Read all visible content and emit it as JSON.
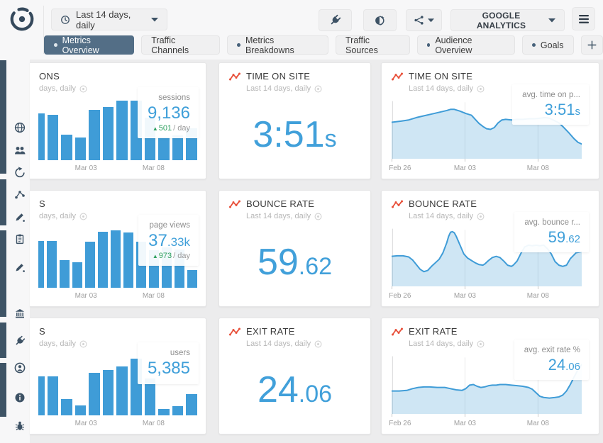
{
  "colors": {
    "accent_blue": "#3f9cd7",
    "area_fill": "rgba(62,154,213,0.25)",
    "green": "#2ea05f",
    "red": "#e8503a",
    "slate": "#3d5265",
    "active_tab": "#536e86"
  },
  "icons": {
    "up_arrow": "▲"
  },
  "topbar": {
    "date_range_label": "Last 14 days, daily",
    "provider_label": "GOOGLE ANALYTICS"
  },
  "tabs": [
    {
      "label": "Metrics Overview",
      "active": true,
      "dot": true
    },
    {
      "label": "Traffic Channels",
      "active": false,
      "dot": false
    },
    {
      "label": "Metrics Breakdowns",
      "active": false,
      "dot": true
    },
    {
      "label": "Traffic Sources",
      "active": false,
      "dot": false
    },
    {
      "label": "Audience Overview",
      "active": false,
      "dot": true
    },
    {
      "label": "Goals",
      "active": false,
      "dot": true
    }
  ],
  "sidebar": {
    "icons": [
      "globe",
      "people",
      "globe-arrow",
      "scatter-dots",
      "pen",
      "clipboard",
      "pen",
      "bank",
      "plug",
      "person-circle",
      "info",
      "bug"
    ]
  },
  "widgets": [
    {
      "title": "ONS",
      "subtitle": "days, daily",
      "stat": {
        "label": "sessions",
        "value_main": "9,136",
        "value_suffix": "",
        "delta": "501",
        "delta_unit": "/ day"
      },
      "chart": 0
    },
    {
      "title": "TIME ON SITE",
      "subtitle": "Last 14 days, daily",
      "value_main": "3:51",
      "value_suffix": "s"
    },
    {
      "title": "TIME ON SITE",
      "subtitle": "Last 14 days, daily",
      "stat": {
        "label": "avg. time on p...",
        "value_main": "3:51",
        "value_suffix": "s"
      },
      "chart": 1
    },
    {
      "title": "S",
      "subtitle": "days, daily",
      "stat": {
        "label": "page views",
        "value_main": "37",
        "value_suffix": ".33k",
        "delta": "973",
        "delta_unit": "/ day"
      },
      "chart": 2
    },
    {
      "title": "BOUNCE RATE",
      "subtitle": "Last 14 days, daily",
      "value_main": "59",
      "value_suffix": ".62"
    },
    {
      "title": "BOUNCE RATE",
      "subtitle": "Last 14 days, daily",
      "stat": {
        "label": "avg. bounce r...",
        "value_main": "59",
        "value_suffix": ".62"
      },
      "chart": 3
    },
    {
      "title": "S",
      "subtitle": "days, daily",
      "stat": {
        "label": "users",
        "value_main": "5,385",
        "value_suffix": ""
      },
      "chart": 4
    },
    {
      "title": "EXIT RATE",
      "subtitle": "Last 14 days, daily",
      "value_main": "24",
      "value_suffix": ".06"
    },
    {
      "title": "EXIT RATE",
      "subtitle": "Last 14 days, daily",
      "stat": {
        "label": "avg. exit rate %",
        "value_main": "24",
        "value_suffix": ".06"
      },
      "chart": 5
    }
  ],
  "chart_data": [
    {
      "type": "bar",
      "id": "sessions",
      "total": "9,136",
      "delta_per_day": "501",
      "first_bar_clipped": true,
      "values_relative_pct": [
        72,
        70,
        40,
        35,
        78,
        82,
        92,
        92,
        66,
        36,
        38,
        49
      ],
      "x_ticks": [
        "Mar 03",
        "Mar 08"
      ],
      "x_tick_pos_pct": [
        30,
        72.5
      ]
    },
    {
      "type": "area",
      "id": "time-on-site",
      "value": "3:51s",
      "points": [
        [
          0,
          38
        ],
        [
          5,
          36
        ],
        [
          9,
          34
        ],
        [
          13,
          30
        ],
        [
          17,
          27
        ],
        [
          21,
          24
        ],
        [
          25,
          21
        ],
        [
          29,
          18
        ],
        [
          31,
          16
        ],
        [
          33,
          16
        ],
        [
          36,
          19
        ],
        [
          39,
          23
        ],
        [
          42,
          26
        ],
        [
          44,
          33
        ],
        [
          46,
          40
        ],
        [
          48,
          45
        ],
        [
          50,
          49
        ],
        [
          52,
          50
        ],
        [
          54,
          47
        ],
        [
          56,
          39
        ],
        [
          58,
          34
        ],
        [
          60,
          33
        ],
        [
          63,
          34
        ],
        [
          66,
          33
        ],
        [
          69,
          33
        ],
        [
          72,
          32
        ],
        [
          75,
          32
        ],
        [
          78,
          31
        ],
        [
          81,
          30
        ],
        [
          83,
          31
        ],
        [
          85,
          34
        ],
        [
          88,
          39
        ],
        [
          90,
          45
        ],
        [
          93,
          55
        ],
        [
          96,
          66
        ],
        [
          98,
          72
        ],
        [
          100,
          75
        ]
      ],
      "x_ticks": [
        "Feb 26",
        "Mar 03",
        "Mar 08"
      ],
      "x_tick_pos_pct": [
        0,
        38.6,
        77
      ],
      "grid_x_pct": [
        38.6,
        77
      ]
    },
    {
      "type": "bar",
      "id": "page-views",
      "total": "37.33k",
      "delta_per_day": "973",
      "first_bar_clipped": true,
      "values_relative_pct": [
        72,
        72,
        43,
        40,
        71,
        87,
        89,
        86,
        71,
        58,
        63,
        59,
        28
      ],
      "x_ticks": [
        "Mar 03",
        "Mar 08"
      ],
      "x_tick_pos_pct": [
        30,
        72.5
      ]
    },
    {
      "type": "area",
      "id": "bounce-rate",
      "value": "59.62",
      "points": [
        [
          0,
          49
        ],
        [
          3,
          48
        ],
        [
          6,
          48
        ],
        [
          9,
          50
        ],
        [
          11,
          55
        ],
        [
          13,
          63
        ],
        [
          15,
          71
        ],
        [
          17,
          75
        ],
        [
          19,
          73
        ],
        [
          21,
          66
        ],
        [
          23,
          60
        ],
        [
          25,
          54
        ],
        [
          27,
          43
        ],
        [
          29,
          26
        ],
        [
          30,
          15
        ],
        [
          31,
          8
        ],
        [
          32,
          7
        ],
        [
          33,
          9
        ],
        [
          34,
          15
        ],
        [
          36,
          30
        ],
        [
          38,
          45
        ],
        [
          40,
          52
        ],
        [
          42,
          56
        ],
        [
          44,
          60
        ],
        [
          46,
          63
        ],
        [
          48,
          64
        ],
        [
          49,
          62
        ],
        [
          51,
          56
        ],
        [
          53,
          51
        ],
        [
          55,
          49
        ],
        [
          57,
          51
        ],
        [
          59,
          57
        ],
        [
          61,
          64
        ],
        [
          63,
          66
        ],
        [
          64,
          64
        ],
        [
          66,
          57
        ],
        [
          68,
          44
        ],
        [
          70,
          33
        ],
        [
          72,
          30
        ],
        [
          74,
          31
        ],
        [
          76,
          30
        ],
        [
          78,
          31
        ],
        [
          80,
          30
        ],
        [
          82,
          36
        ],
        [
          84,
          45
        ],
        [
          86,
          58
        ],
        [
          88,
          64
        ],
        [
          90,
          66
        ],
        [
          92,
          64
        ],
        [
          94,
          53
        ],
        [
          97,
          43
        ],
        [
          100,
          41
        ]
      ],
      "x_ticks": [
        "Feb 26",
        "Mar 03",
        "Mar 08"
      ],
      "x_tick_pos_pct": [
        0,
        38.6,
        77
      ],
      "grid_x_pct": [
        38.6,
        77
      ]
    },
    {
      "type": "bar",
      "id": "users",
      "total": "5,385",
      "first_bar_clipped": true,
      "values_relative_pct": [
        60,
        60,
        25,
        15,
        66,
        70,
        76,
        88,
        57,
        10,
        14,
        33
      ],
      "x_ticks": [
        "Mar 03",
        "Mar 08"
      ],
      "x_tick_pos_pct": [
        30,
        72.5
      ]
    },
    {
      "type": "area",
      "id": "exit-rate",
      "value": "24.06",
      "points": [
        [
          0,
          61
        ],
        [
          4,
          61
        ],
        [
          8,
          60
        ],
        [
          11,
          57
        ],
        [
          14,
          55
        ],
        [
          17,
          54
        ],
        [
          20,
          54
        ],
        [
          24,
          55
        ],
        [
          28,
          55
        ],
        [
          31,
          57
        ],
        [
          34,
          59
        ],
        [
          37,
          60
        ],
        [
          39,
          57
        ],
        [
          41,
          51
        ],
        [
          43,
          50
        ],
        [
          45,
          53
        ],
        [
          47,
          55
        ],
        [
          49,
          54
        ],
        [
          51,
          52
        ],
        [
          53,
          51
        ],
        [
          55,
          51
        ],
        [
          57,
          50
        ],
        [
          60,
          50
        ],
        [
          63,
          51
        ],
        [
          66,
          52
        ],
        [
          69,
          53
        ],
        [
          72,
          55
        ],
        [
          74,
          58
        ],
        [
          76,
          64
        ],
        [
          78,
          70
        ],
        [
          80,
          72
        ],
        [
          83,
          73
        ],
        [
          86,
          72
        ],
        [
          88,
          71
        ],
        [
          90,
          68
        ],
        [
          92,
          61
        ],
        [
          94,
          50
        ],
        [
          96,
          37
        ],
        [
          98,
          25
        ],
        [
          100,
          16
        ]
      ],
      "x_ticks": [
        "Feb 26",
        "Mar 03",
        "Mar 08"
      ],
      "x_tick_pos_pct": [
        0,
        38.6,
        77
      ],
      "grid_x_pct": [
        38.6,
        77
      ]
    }
  ]
}
